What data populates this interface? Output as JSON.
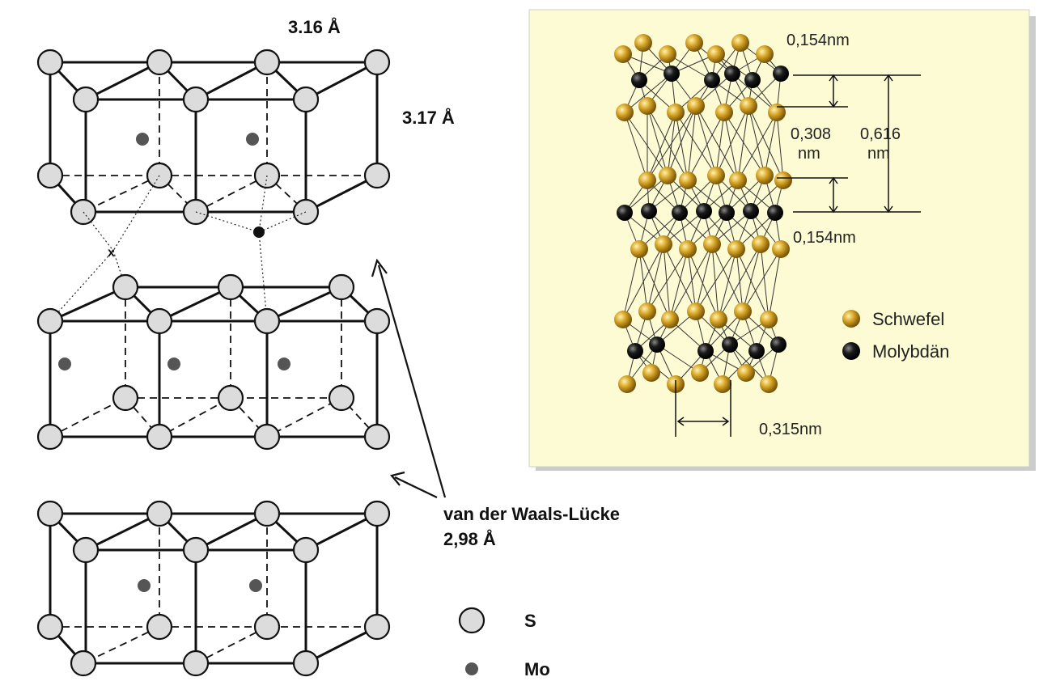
{
  "left_diagram": {
    "label_a": "3.16 Å",
    "label_c": "3.17 Å",
    "label_site": "x",
    "arrow_label_line1": "van der Waals-Lücke",
    "arrow_label_line2": "2,98 Å",
    "legend": [
      {
        "symbol": "S-atom",
        "label": "S"
      },
      {
        "symbol": "Mo-atom",
        "label": "Mo"
      }
    ]
  },
  "right_diagram": {
    "top_dim": "0,154nm",
    "mid_dim_1_line1": "0,308",
    "mid_dim_1_line2": "nm",
    "mid_dim_2_line1": "0,616",
    "mid_dim_2_line2": "nm",
    "lower_dim": "0,154nm",
    "bottom_dim": "0,315nm",
    "legend": [
      {
        "label": "Schwefel",
        "color": "#c99a1c"
      },
      {
        "label": "Molybdän",
        "color": "#111111"
      }
    ]
  },
  "colors": {
    "panel_bg": "#fdfbd4",
    "sulfur_gold": "#c99a1c",
    "molybdenum": "#111111",
    "s_atom_fill": "#dcdcdc",
    "mo_atom_fill": "#555555"
  }
}
